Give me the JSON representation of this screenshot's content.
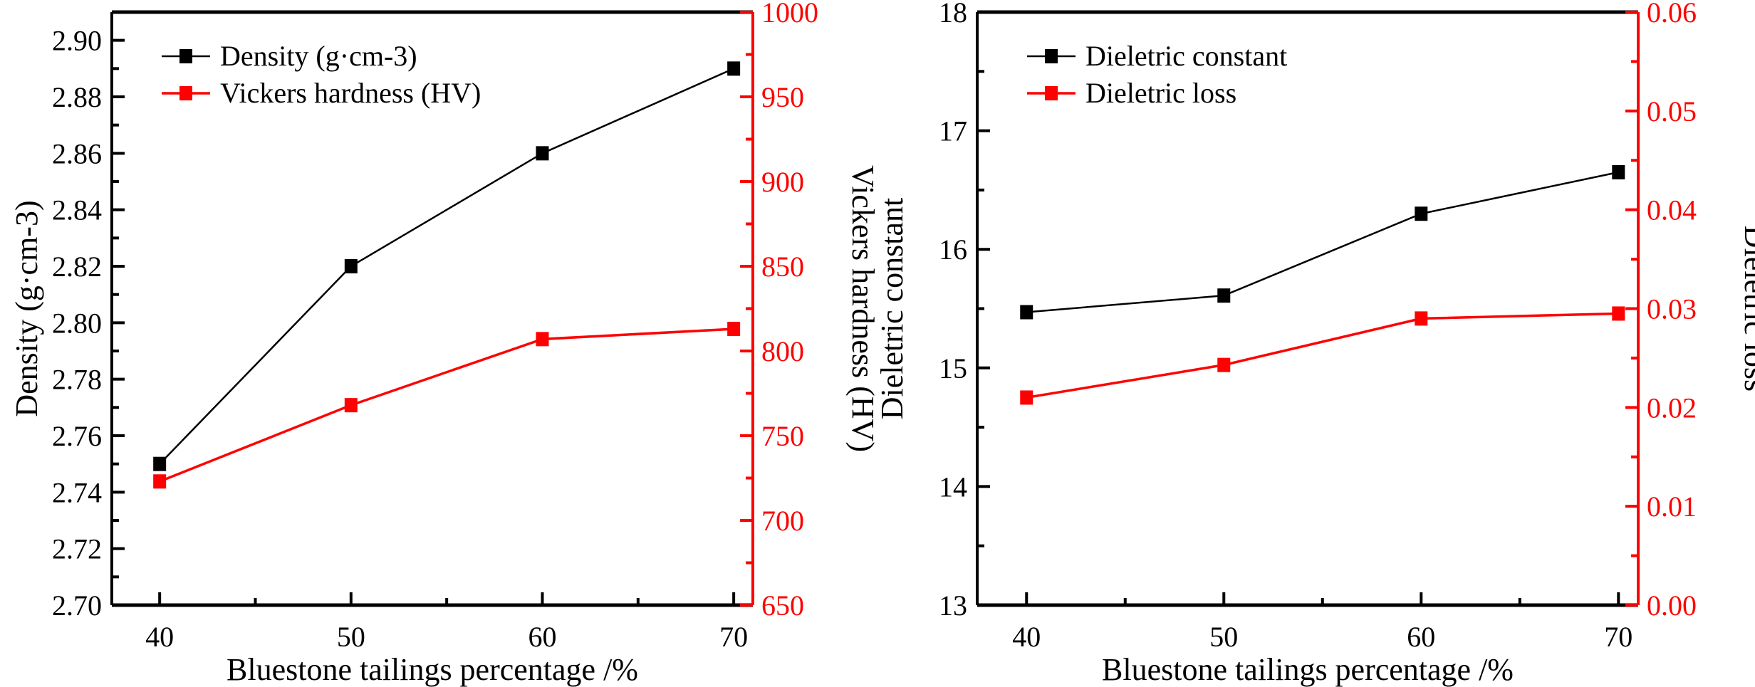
{
  "chart_data": [
    {
      "type": "line",
      "title": "",
      "xlabel": "Bluestone tailings percentage /%",
      "ylabel": "Density (g·cm-3)",
      "ylabel_right": "Vickers hardness (HV)",
      "x": [
        40,
        50,
        60,
        70
      ],
      "xlim": [
        37.5,
        71
      ],
      "x_ticks": [
        "40",
        "50",
        "60",
        "70"
      ],
      "ylim": [
        2.7,
        2.91
      ],
      "y_ticks": [
        "2.70",
        "2.72",
        "2.74",
        "2.76",
        "2.78",
        "2.80",
        "2.82",
        "2.84",
        "2.86",
        "2.88",
        "2.90"
      ],
      "ylim_right": [
        650,
        1000
      ],
      "y_ticks_right": [
        "650",
        "700",
        "750",
        "800",
        "850",
        "900",
        "950",
        "1000"
      ],
      "legend_position": "top-left",
      "series": [
        {
          "name": "Density (g·cm-3)",
          "axis": "left",
          "color": "#000000",
          "values": [
            2.75,
            2.82,
            2.86,
            2.89
          ]
        },
        {
          "name": "Vickers hardness (HV)",
          "axis": "right",
          "color": "#ff0000",
          "values": [
            723,
            768,
            807,
            813
          ]
        }
      ]
    },
    {
      "type": "line",
      "title": "",
      "xlabel": "Bluestone tailings percentage /%",
      "ylabel": "Dieletric constant",
      "ylabel_right": "Dieletric loss",
      "x": [
        40,
        50,
        60,
        70
      ],
      "xlim": [
        37.5,
        71
      ],
      "x_ticks": [
        "40",
        "50",
        "60",
        "70"
      ],
      "ylim": [
        13,
        18
      ],
      "y_ticks": [
        "13",
        "14",
        "15",
        "16",
        "17",
        "18"
      ],
      "ylim_right": [
        0,
        0.06
      ],
      "y_ticks_right": [
        "0.00",
        "0.01",
        "0.02",
        "0.03",
        "0.04",
        "0.05",
        "0.06"
      ],
      "legend_position": "top-left",
      "series": [
        {
          "name": "Dieletric constant",
          "axis": "left",
          "color": "#000000",
          "values": [
            15.47,
            15.61,
            16.3,
            16.65
          ]
        },
        {
          "name": "Dieletric loss",
          "axis": "right",
          "color": "#ff0000",
          "values": [
            0.021,
            0.0243,
            0.029,
            0.0295
          ]
        }
      ]
    }
  ]
}
